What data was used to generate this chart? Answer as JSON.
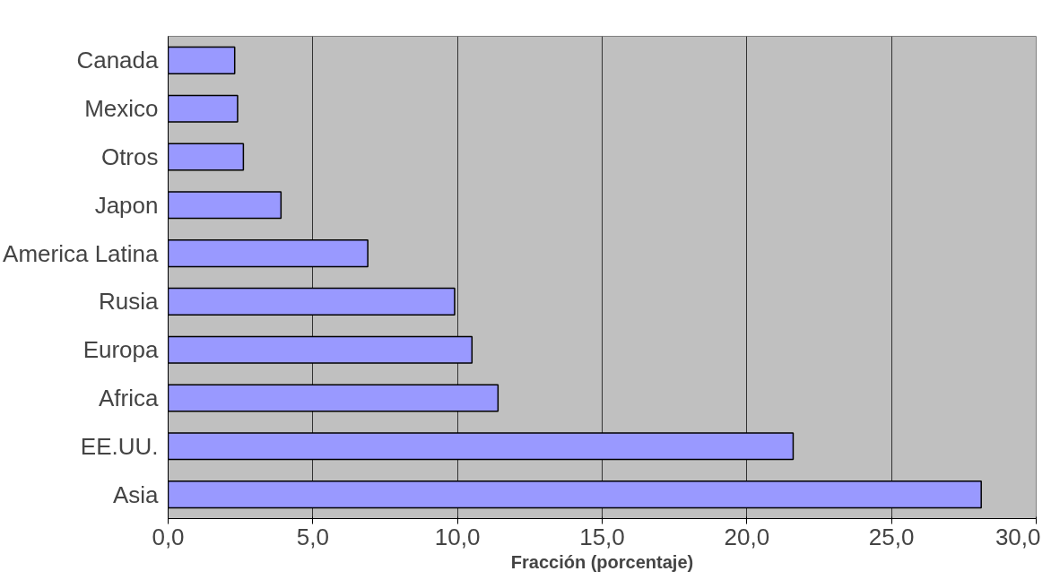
{
  "chart_data": {
    "type": "bar",
    "orientation": "horizontal",
    "xlabel": "Fracción (porcentaje)",
    "categories": [
      "Canada",
      "Mexico",
      "Otros",
      "Japon",
      "America Latina",
      "Rusia",
      "Europa",
      "Africa",
      "EE.UU.",
      "Asia"
    ],
    "values": [
      2.3,
      2.4,
      2.6,
      3.9,
      6.9,
      9.9,
      10.5,
      11.4,
      21.6,
      28.1
    ],
    "color": "#9999ff",
    "xlim": [
      0,
      30
    ],
    "xticks": [
      {
        "value": 0,
        "label": "0,0"
      },
      {
        "value": 5,
        "label": "5,0"
      },
      {
        "value": 10,
        "label": "10,0"
      },
      {
        "value": 15,
        "label": "15,0"
      },
      {
        "value": 20,
        "label": "20,0"
      },
      {
        "value": 25,
        "label": "25,0"
      },
      {
        "value": 30,
        "label": "30,0"
      }
    ],
    "grid": "x"
  }
}
